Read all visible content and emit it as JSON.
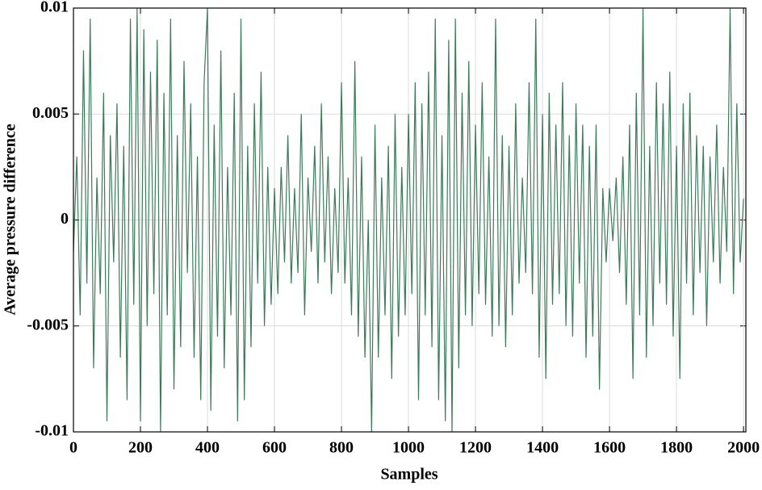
{
  "chart_data": {
    "type": "line",
    "xlabel": "Samples",
    "ylabel": "Average pressure difference",
    "xlim": [
      0,
      2007
    ],
    "ylim": [
      -0.01,
      0.01
    ],
    "xticks": [
      0,
      200,
      400,
      600,
      800,
      1000,
      1200,
      1400,
      1600,
      1800,
      2000
    ],
    "yticks": [
      -0.01,
      -0.005,
      0,
      0.005,
      0.01
    ],
    "grid": true,
    "x": [
      0,
      10,
      20,
      30,
      40,
      50,
      60,
      70,
      80,
      90,
      100,
      110,
      120,
      130,
      140,
      150,
      160,
      170,
      180,
      190,
      200,
      210,
      220,
      230,
      240,
      250,
      260,
      270,
      280,
      290,
      300,
      310,
      320,
      330,
      340,
      350,
      360,
      370,
      380,
      390,
      400,
      410,
      420,
      430,
      440,
      450,
      460,
      470,
      480,
      490,
      500,
      510,
      520,
      530,
      540,
      550,
      560,
      570,
      580,
      590,
      600,
      610,
      620,
      630,
      640,
      650,
      660,
      670,
      680,
      690,
      700,
      710,
      720,
      730,
      740,
      750,
      760,
      770,
      780,
      790,
      800,
      810,
      820,
      830,
      840,
      850,
      860,
      870,
      880,
      890,
      900,
      910,
      920,
      930,
      940,
      950,
      960,
      970,
      980,
      990,
      1000,
      1010,
      1020,
      1030,
      1040,
      1050,
      1060,
      1070,
      1080,
      1090,
      1100,
      1110,
      1120,
      1130,
      1140,
      1150,
      1160,
      1170,
      1180,
      1190,
      1200,
      1210,
      1220,
      1230,
      1240,
      1250,
      1260,
      1270,
      1280,
      1290,
      1300,
      1310,
      1320,
      1330,
      1340,
      1350,
      1360,
      1370,
      1380,
      1390,
      1400,
      1410,
      1420,
      1430,
      1440,
      1450,
      1460,
      1470,
      1480,
      1490,
      1500,
      1510,
      1520,
      1530,
      1540,
      1550,
      1560,
      1570,
      1580,
      1590,
      1600,
      1610,
      1620,
      1630,
      1640,
      1650,
      1660,
      1670,
      1680,
      1690,
      1700,
      1710,
      1720,
      1730,
      1740,
      1750,
      1760,
      1770,
      1780,
      1790,
      1800,
      1810,
      1820,
      1830,
      1840,
      1850,
      1860,
      1870,
      1880,
      1890,
      1900,
      1910,
      1920,
      1930,
      1940,
      1950,
      1960,
      1970,
      1980,
      1990,
      2000
    ],
    "series": [
      {
        "name": "Average pressure difference",
        "color": "#3d7a5c",
        "values": [
          -0.0015,
          0.003,
          -0.0045,
          0.008,
          -0.003,
          0.0095,
          -0.007,
          0.002,
          -0.0035,
          0.006,
          -0.0095,
          0.004,
          -0.002,
          0.0055,
          -0.0065,
          0.0035,
          -0.0085,
          0.0095,
          -0.004,
          0.01,
          -0.0095,
          0.009,
          -0.005,
          0.007,
          -0.0035,
          0.0085,
          -0.01,
          0.006,
          -0.0045,
          0.0095,
          -0.008,
          0.004,
          -0.006,
          0.0075,
          -0.0025,
          0.0055,
          -0.0065,
          0.003,
          -0.0085,
          0.0065,
          0.01,
          -0.009,
          0.0045,
          -0.0055,
          0.008,
          -0.007,
          0.0025,
          -0.0045,
          0.006,
          -0.0095,
          0.0095,
          -0.0085,
          0.0035,
          -0.006,
          0.0055,
          -0.003,
          0.007,
          -0.005,
          0.0025,
          -0.004,
          0.0015,
          -0.0035,
          0.0025,
          -0.002,
          0.004,
          -0.003,
          0.0015,
          -0.0025,
          0.005,
          -0.0045,
          0.002,
          -0.0015,
          0.0035,
          -0.003,
          0.0055,
          -0.002,
          0.003,
          -0.0035,
          0.0015,
          -0.0025,
          0.0065,
          -0.003,
          0.002,
          -0.0045,
          0.0075,
          -0.0055,
          0.003,
          -0.0065,
          0,
          -0.01,
          0.0045,
          -0.0065,
          0.002,
          -0.0045,
          0.0035,
          -0.0075,
          0.005,
          -0.0055,
          0.0025,
          -0.0045,
          0.005,
          -0.0035,
          0.0065,
          -0.0085,
          0.0055,
          -0.0045,
          0.007,
          -0.006,
          0.0095,
          -0.0085,
          0.004,
          -0.0095,
          0.0085,
          -0.01,
          0.0095,
          -0.007,
          0.006,
          -0.0045,
          0.0075,
          -0.005,
          0.0045,
          -0.0035,
          0.0065,
          -0.004,
          0.003,
          -0.0055,
          0.0095,
          -0.005,
          0.004,
          -0.006,
          0.0035,
          -0.0045,
          0.0055,
          -0.003,
          0.002,
          -0.0025,
          0.0065,
          -0.0035,
          0.0095,
          -0.0065,
          0.005,
          -0.0075,
          0.006,
          -0.004,
          0.0045,
          -0.0035,
          0.0065,
          -0.005,
          0.004,
          -0.0055,
          0.0055,
          -0.003,
          0.0045,
          -0.0065,
          0.0035,
          -0.0055,
          0.0045,
          -0.008,
          0.0015,
          -0.002,
          0.0015,
          -0.001,
          0.002,
          -0.0025,
          0.003,
          -0.004,
          0.0045,
          -0.0075,
          0.006,
          -0.0045,
          0.01,
          -0.0065,
          0.0035,
          -0.005,
          0.0065,
          -0.003,
          0.0055,
          -0.004,
          0.007,
          -0.0055,
          0.0035,
          -0.0075,
          0.0055,
          -0.003,
          0.006,
          -0.0045,
          0.004,
          -0.0025,
          0.0035,
          -0.005,
          0.003,
          -0.002,
          0.0045,
          -0.003,
          0.0025,
          -0.0015,
          0.01,
          -0.0035,
          0.0055,
          -0.002,
          0.001
        ]
      }
    ]
  }
}
